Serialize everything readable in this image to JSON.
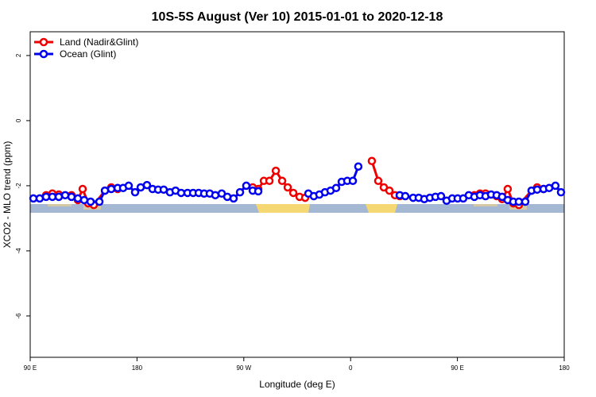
{
  "chart_data": {
    "type": "line",
    "title": "10S-5S August (Ver 10)   2015-01-01 to 2020-12-18",
    "x_label": "Longitude (deg E)",
    "y_label": "XCO2 - MLO trend (ppm)",
    "xlim": [
      90,
      540
    ],
    "xticks": [
      {
        "value": 90,
        "label": "90 E"
      },
      180,
      {
        "value": 270,
        "label": "90 W"
      },
      {
        "value": 360,
        "label": "0"
      },
      {
        "value": 450,
        "label": "90 E"
      },
      {
        "value": 540,
        "label": "180"
      }
    ],
    "ylim": [
      -7.27,
      2.73
    ],
    "yticks": [
      2,
      0,
      -2,
      -4,
      -6
    ],
    "legend": "top-left",
    "series": [
      {
        "name": "Land (Nadir&Glint)",
        "color": "#ee0000",
        "x": [
          103.4,
          108.7,
          114.1,
          124.8,
          130.2,
          134.2,
          138.9,
          143.6,
          153.0,
          158.3,
          163.7,
          220,
          277.5,
          282.2,
          286.9,
          291.6,
          297.0,
          302.3,
          307.0,
          311.7,
          317.0,
          321.7,
          350,
          377.9,
          383.3,
          388.0,
          392.7,
          397.4,
          401.4,
          430,
          464.3,
          469.0,
          473.7,
          483.1,
          487.7,
          492.4,
          497.1,
          501.8,
          512.5,
          517.2,
          522.6
        ],
        "values": [
          -2.29,
          -2.24,
          -2.27,
          -2.29,
          -2.44,
          -2.1,
          -2.54,
          -2.59,
          -2.15,
          -2.05,
          -2.1,
          null,
          -2.05,
          -2.1,
          -1.85,
          -1.85,
          -1.54,
          -1.85,
          -2.05,
          -2.22,
          -2.34,
          -2.37,
          null,
          -1.24,
          -1.85,
          -2.05,
          -2.15,
          -2.29,
          -2.32,
          null,
          -2.29,
          -2.24,
          -2.24,
          -2.32,
          -2.41,
          -2.1,
          -2.54,
          -2.59,
          -2.15,
          -2.05,
          -2.1
        ]
      },
      {
        "name": "Ocean (Glint)",
        "color": "#0000ee",
        "x": [
          92.7,
          98.0,
          103.4,
          108.7,
          114.1,
          119.5,
          124.8,
          130.2,
          135.5,
          140.9,
          148.3,
          153.0,
          158.3,
          163.7,
          168.3,
          173.0,
          178.4,
          183.1,
          188.4,
          193.1,
          197.8,
          202.5,
          207.8,
          212.5,
          217.2,
          222.6,
          227.3,
          232.0,
          236.6,
          241.3,
          246.0,
          251.4,
          256.1,
          261.4,
          266.8,
          272.1,
          277.5,
          282.2,
          300,
          324.4,
          329.0,
          333.7,
          338.4,
          343.1,
          347.8,
          352.5,
          357.2,
          361.9,
          366.5,
          385,
          401.4,
          406.1,
          412.7,
          417.4,
          422.1,
          426.8,
          431.5,
          436.2,
          440.9,
          445.6,
          450.2,
          454.9,
          459.6,
          464.3,
          469.0,
          473.7,
          478.4,
          483.1,
          487.7,
          492.4,
          497.1,
          501.8,
          507.2,
          512.5,
          517.2,
          522.6,
          527.3,
          532.6,
          537.3
        ],
        "values": [
          -2.39,
          -2.39,
          -2.34,
          -2.34,
          -2.34,
          -2.29,
          -2.34,
          -2.39,
          -2.44,
          -2.49,
          -2.49,
          -2.15,
          -2.1,
          -2.07,
          -2.07,
          -2.0,
          -2.2,
          -2.05,
          -1.98,
          -2.1,
          -2.12,
          -2.12,
          -2.2,
          -2.15,
          -2.22,
          -2.22,
          -2.22,
          -2.22,
          -2.24,
          -2.24,
          -2.29,
          -2.24,
          -2.34,
          -2.39,
          -2.2,
          -2.0,
          -2.15,
          -2.17,
          null,
          -2.24,
          -2.32,
          -2.27,
          -2.2,
          -2.15,
          -2.07,
          -1.88,
          -1.85,
          -1.85,
          -1.41,
          null,
          -2.29,
          -2.32,
          -2.37,
          -2.37,
          -2.41,
          -2.37,
          -2.34,
          -2.32,
          -2.46,
          -2.39,
          -2.39,
          -2.39,
          -2.29,
          -2.34,
          -2.29,
          -2.32,
          -2.27,
          -2.29,
          -2.34,
          -2.44,
          -2.49,
          -2.49,
          -2.49,
          -2.15,
          -2.12,
          -2.1,
          -2.07,
          -2.0,
          -2.2
        ]
      }
    ]
  }
}
